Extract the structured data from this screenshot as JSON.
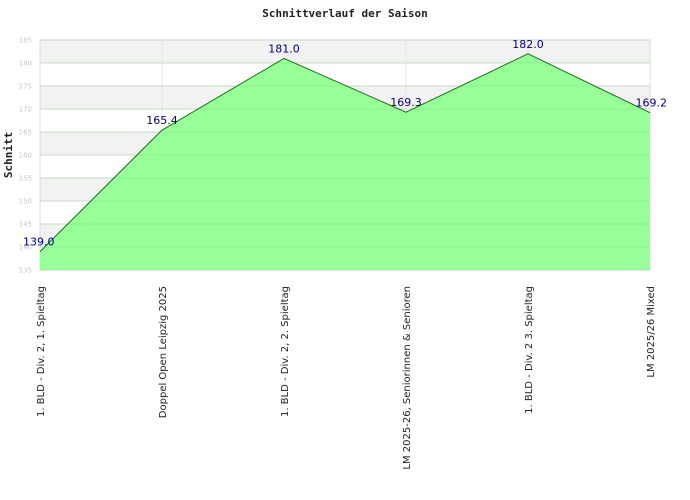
{
  "chart_data": {
    "type": "area",
    "title": "Schnittverlauf der Saison",
    "ylabel": "Schnitt",
    "xlabel": "",
    "ylim": [
      135,
      185
    ],
    "yticks": [
      135,
      140,
      145,
      150,
      155,
      160,
      165,
      170,
      175,
      180,
      185
    ],
    "grid": true,
    "legend": "none",
    "fill_color": "#99ff99",
    "line_color": "#008000",
    "label_color": "#000080",
    "categories": [
      "1. BLD - Div. 2, 1. Spieltag",
      "Doppel Open Leipzig 2025",
      "1. BLD - Div. 2, 2. Spieltag",
      "LM 2025-26, Seniorinnen & Senioren",
      "1. BLD - Div. 2  3. Spieltag",
      "LM 2025/26 Mixed"
    ],
    "values": [
      139.0,
      165.4,
      181.0,
      169.3,
      182.0,
      169.2
    ],
    "labels": [
      "139.0",
      "165.4",
      "181.0",
      "169.3",
      "182.0",
      "169.2"
    ]
  }
}
